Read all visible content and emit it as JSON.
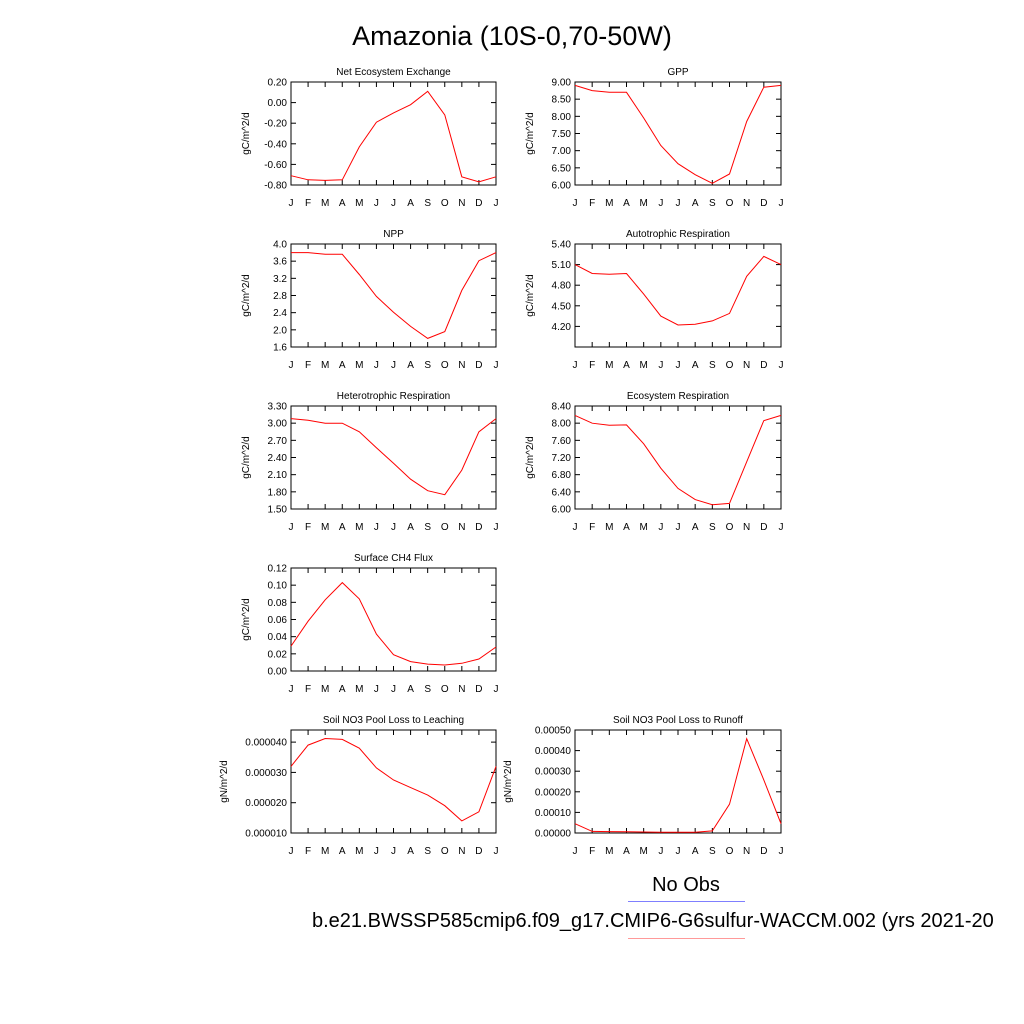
{
  "figure": {
    "title": "Amazonia (10S-0,70-50W)",
    "legend_no_obs": "No Obs",
    "legend_case": "b.e21.BWSSP585cmip6.f09_g17.CMIP6-G6sulfur-WACCM.002 (yrs 2021-20",
    "colors": {
      "model_line": "#ff0000",
      "obs_line": "#7f7fff",
      "axis": "#000000"
    }
  },
  "chart_data": [
    {
      "type": "line",
      "title": "Net Ecosystem Exchange",
      "ylabel": "gC/m^2/d",
      "x": [
        "J",
        "F",
        "M",
        "A",
        "M",
        "J",
        "J",
        "A",
        "S",
        "O",
        "N",
        "D",
        "J"
      ],
      "ylim": [
        -0.8,
        0.2
      ],
      "yticks": [
        "0.20",
        "0.00",
        "-0.20",
        "-0.40",
        "-0.60",
        "-0.80"
      ],
      "series": [
        {
          "values": [
            -0.71,
            -0.75,
            -0.755,
            -0.75,
            -0.43,
            -0.19,
            -0.1,
            -0.02,
            0.11,
            -0.12,
            -0.72,
            -0.77,
            -0.72
          ]
        }
      ]
    },
    {
      "type": "line",
      "title": "GPP",
      "ylabel": "gC/m^2/d",
      "x": [
        "J",
        "F",
        "M",
        "A",
        "M",
        "J",
        "J",
        "A",
        "S",
        "O",
        "N",
        "D",
        "J"
      ],
      "ylim": [
        6.0,
        9.0
      ],
      "yticks": [
        "9.00",
        "8.50",
        "8.00",
        "7.50",
        "7.00",
        "6.50",
        "6.00"
      ],
      "series": [
        {
          "values": [
            8.9,
            8.75,
            8.7,
            8.7,
            7.95,
            7.15,
            6.62,
            6.3,
            6.05,
            6.32,
            7.85,
            8.85,
            8.9
          ]
        }
      ]
    },
    {
      "type": "line",
      "title": "NPP",
      "ylabel": "gC/m^2/d",
      "x": [
        "J",
        "F",
        "M",
        "A",
        "M",
        "J",
        "J",
        "A",
        "S",
        "O",
        "N",
        "D",
        "J"
      ],
      "ylim": [
        1.6,
        4.0
      ],
      "yticks": [
        "4.0",
        "3.6",
        "3.2",
        "2.8",
        "2.4",
        "2.0",
        "1.6"
      ],
      "series": [
        {
          "values": [
            3.8,
            3.8,
            3.76,
            3.76,
            3.29,
            2.78,
            2.41,
            2.08,
            1.8,
            1.96,
            2.92,
            3.61,
            3.8
          ]
        }
      ]
    },
    {
      "type": "line",
      "title": "Autotrophic Respiration",
      "ylabel": "gC/m^2/d",
      "x": [
        "J",
        "F",
        "M",
        "A",
        "M",
        "J",
        "J",
        "A",
        "S",
        "O",
        "N",
        "D",
        "J"
      ],
      "ylim": [
        3.9,
        5.4
      ],
      "yticks": [
        "5.40",
        "5.10",
        "4.80",
        "4.50",
        "4.20"
      ],
      "series": [
        {
          "values": [
            5.1,
            4.97,
            4.96,
            4.97,
            4.67,
            4.35,
            4.22,
            4.23,
            4.28,
            4.39,
            4.93,
            5.22,
            5.1
          ]
        }
      ]
    },
    {
      "type": "line",
      "title": "Heterotrophic Respiration",
      "ylabel": "gC/m^2/d",
      "x": [
        "J",
        "F",
        "M",
        "A",
        "M",
        "J",
        "J",
        "A",
        "S",
        "O",
        "N",
        "D",
        "J"
      ],
      "ylim": [
        1.5,
        3.3
      ],
      "yticks": [
        "3.30",
        "3.00",
        "2.70",
        "2.40",
        "2.10",
        "1.80",
        "1.50"
      ],
      "series": [
        {
          "values": [
            3.08,
            3.05,
            3.0,
            3.0,
            2.85,
            2.57,
            2.3,
            2.02,
            1.82,
            1.75,
            2.18,
            2.85,
            3.08
          ]
        }
      ]
    },
    {
      "type": "line",
      "title": "Ecosystem Respiration",
      "ylabel": "gC/m^2/d",
      "x": [
        "J",
        "F",
        "M",
        "A",
        "M",
        "J",
        "J",
        "A",
        "S",
        "O",
        "N",
        "D",
        "J"
      ],
      "ylim": [
        6.0,
        8.4
      ],
      "yticks": [
        "8.40",
        "8.00",
        "7.60",
        "7.20",
        "6.80",
        "6.40",
        "6.00"
      ],
      "series": [
        {
          "values": [
            8.18,
            8.0,
            7.95,
            7.96,
            7.52,
            6.95,
            6.48,
            6.22,
            6.1,
            6.13,
            7.1,
            8.06,
            8.18
          ]
        }
      ]
    },
    {
      "type": "line",
      "title": "Surface CH4 Flux",
      "ylabel": "gC/m^2/d",
      "x": [
        "J",
        "F",
        "M",
        "A",
        "M",
        "J",
        "J",
        "A",
        "S",
        "O",
        "N",
        "D",
        "J"
      ],
      "ylim": [
        0.0,
        0.12
      ],
      "yticks": [
        "0.12",
        "0.10",
        "0.08",
        "0.06",
        "0.04",
        "0.02",
        "0.00"
      ],
      "series": [
        {
          "values": [
            0.029,
            0.058,
            0.083,
            0.103,
            0.084,
            0.043,
            0.019,
            0.011,
            0.008,
            0.007,
            0.009,
            0.014,
            0.028
          ]
        }
      ]
    },
    {
      "type": "line",
      "title": "Soil NO3 Pool Loss to Leaching",
      "ylabel": "gN/m^2/d",
      "x": [
        "J",
        "F",
        "M",
        "A",
        "M",
        "J",
        "J",
        "A",
        "S",
        "O",
        "N",
        "D",
        "J"
      ],
      "ylim": [
        1e-05,
        4.4e-05
      ],
      "yticks": [
        "0.000040",
        "0.000030",
        "0.000020",
        "0.000010"
      ],
      "ytick_values": [
        4e-05,
        3e-05,
        2e-05,
        1e-05
      ],
      "series": [
        {
          "values": [
            3.2e-05,
            3.9e-05,
            4.12e-05,
            4.09e-05,
            3.8e-05,
            3.15e-05,
            2.75e-05,
            2.5e-05,
            2.25e-05,
            1.9e-05,
            1.4e-05,
            1.7e-05,
            3.2e-05
          ]
        }
      ]
    },
    {
      "type": "line",
      "title": "Soil NO3 Pool Loss to Runoff",
      "ylabel": "gN/m^2/d",
      "x": [
        "J",
        "F",
        "M",
        "A",
        "M",
        "J",
        "J",
        "A",
        "S",
        "O",
        "N",
        "D",
        "J"
      ],
      "ylim": [
        0.0,
        0.0005
      ],
      "yticks": [
        "0.00050",
        "0.00040",
        "0.00030",
        "0.00020",
        "0.00010",
        "0.00000"
      ],
      "series": [
        {
          "values": [
            4.5e-05,
            8e-06,
            7e-06,
            6e-06,
            5e-06,
            4e-06,
            4e-06,
            4e-06,
            1e-05,
            0.00014,
            0.000458,
            0.000258,
            4.5e-05
          ]
        }
      ]
    }
  ]
}
